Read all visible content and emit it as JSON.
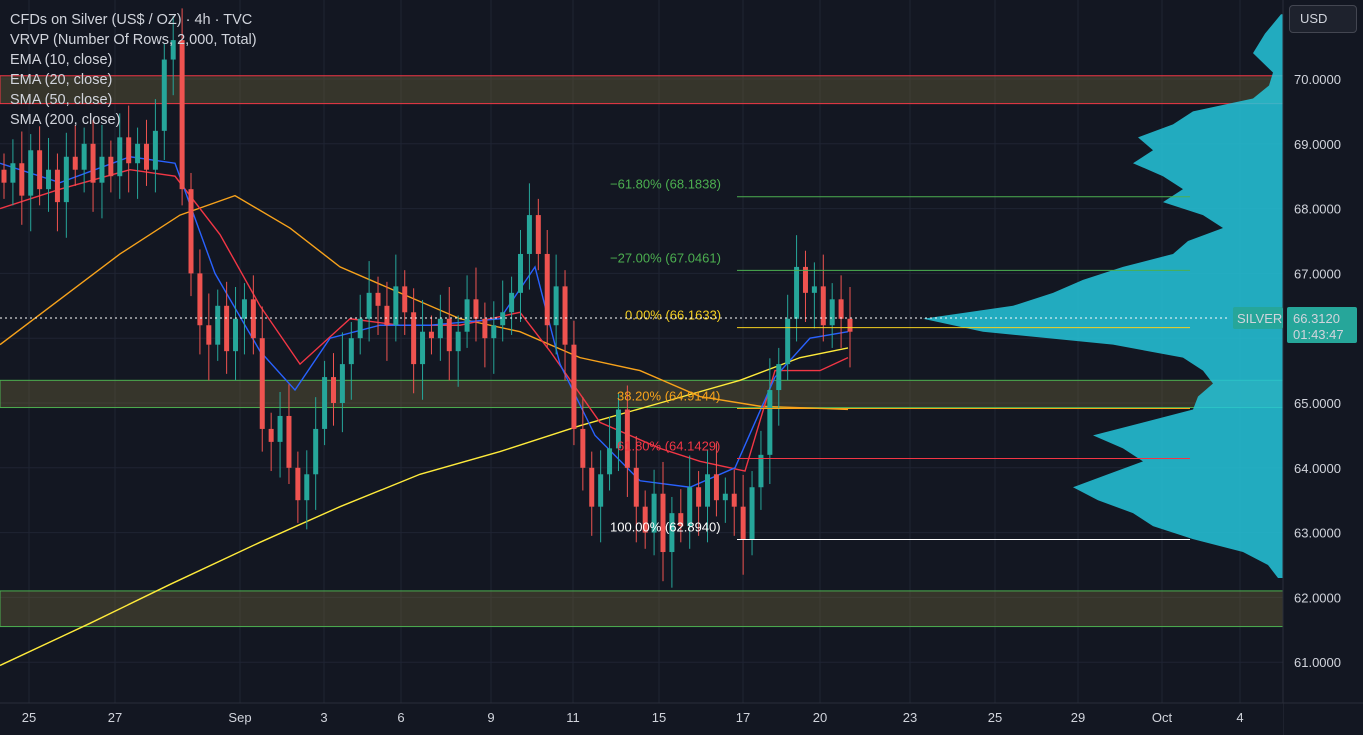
{
  "header": {
    "title": "CFDs on Silver (US$ / OZ) · 4h · TVC",
    "indicators": [
      "VRVP (Number Of Rows, 2,000, Total)",
      "EMA (10, close)",
      "EMA (20, close)",
      "SMA (50, close)",
      "SMA (200, close)"
    ]
  },
  "currency_button": "USD",
  "price_badge": {
    "symbol": "SILVER",
    "price": "66.3120",
    "countdown": "01:43:47"
  },
  "colors": {
    "background": "#131722",
    "up": "#26a69a",
    "down": "#ef5350",
    "ema10": "#2962ff",
    "ema20": "#f23645",
    "sma50": "#f7a21b",
    "sma200": "#ffeb3b",
    "volume_profile": "#26c6da",
    "zone_green": "#4caf50",
    "zone_red": "#f23645"
  },
  "chart_data": {
    "type": "candlestick",
    "timeframe": "4h",
    "ylim": [
      60.5,
      71.0
    ],
    "y_ticks": [
      "70.0000",
      "69.0000",
      "68.0000",
      "67.0000",
      "65.0000",
      "64.0000",
      "63.0000",
      "62.0000",
      "61.0000"
    ],
    "x_ticks": [
      "25",
      "27",
      "Sep",
      "3",
      "6",
      "9",
      "11",
      "15",
      "17",
      "20",
      "23",
      "25",
      "29",
      "Oct",
      "4"
    ],
    "zones": [
      {
        "top": 70.05,
        "bottom": 69.62,
        "border": "red"
      },
      {
        "top": 65.35,
        "bottom": 64.93,
        "border": "green"
      },
      {
        "top": 62.1,
        "bottom": 61.55,
        "border": "green"
      }
    ],
    "fib_levels": [
      {
        "label": "−61.80% (68.1838)",
        "value": 68.1838,
        "color": "#4caf50"
      },
      {
        "label": "−27.00% (67.0461)",
        "value": 67.0461,
        "color": "#4caf50"
      },
      {
        "label": "0.00% (66.1633)",
        "value": 66.1633,
        "color": "#f5d020"
      },
      {
        "label": "38.20% (64.9144)",
        "value": 64.9144,
        "color": "#f7a21b"
      },
      {
        "label": "61.80% (64.1429)",
        "value": 64.1429,
        "color": "#f23645"
      },
      {
        "label": "100.00% (62.8940)",
        "value": 62.894,
        "color": "#ffffff"
      }
    ],
    "last_price": 66.312,
    "sample_candles": [
      {
        "o": 68.4,
        "h": 69.4,
        "l": 68.2,
        "c": 68.6
      },
      {
        "o": 69.0,
        "h": 70.9,
        "l": 68.7,
        "c": 70.5
      },
      {
        "o": 70.5,
        "h": 70.9,
        "l": 67.9,
        "c": 68.3
      },
      {
        "o": 66.3,
        "h": 67.6,
        "l": 66.0,
        "c": 67.1
      },
      {
        "o": 67.6,
        "h": 67.9,
        "l": 66.4,
        "c": 66.6
      },
      {
        "o": 65.9,
        "h": 66.5,
        "l": 65.1,
        "c": 65.2
      },
      {
        "o": 66.3,
        "h": 67.1,
        "l": 65.6,
        "c": 66.4
      },
      {
        "o": 65.9,
        "h": 66.4,
        "l": 65.8,
        "c": 66.3
      }
    ]
  }
}
